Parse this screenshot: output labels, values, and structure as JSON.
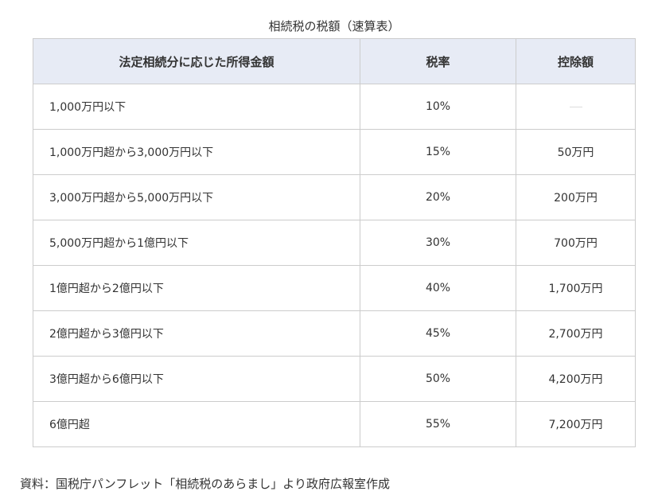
{
  "title": "相続税の税額（速算表）",
  "headers": [
    "法定相続分に応じた所得金額",
    "税率",
    "控除額"
  ],
  "rows": [
    [
      "1,000万円以下",
      "10%",
      "—"
    ],
    [
      "1,000万円超から3,000万円以下",
      "15%",
      "50万円"
    ],
    [
      "3,000万円超から5,000万円以下",
      "20%",
      "200万円"
    ],
    [
      "5,000万円超から1億円以下",
      "30%",
      "700万円"
    ],
    [
      "1億円超から2億円以下",
      "40%",
      "1,700万円"
    ],
    [
      "2億円超から3億円以下",
      "45%",
      "2,700万円"
    ],
    [
      "3億円超から6億円以下",
      "50%",
      "4,200万円"
    ],
    [
      "6億円超",
      "55%",
      "7,200万円"
    ]
  ],
  "source": "資料：国税庁パンフレット「相続税のあらまし」より政府広報室作成"
}
